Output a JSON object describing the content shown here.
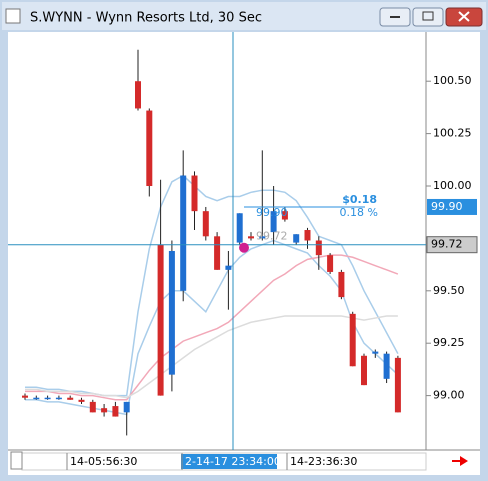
{
  "window": {
    "title": "S.WYNN - Wynn Resorts Ltd, 30 Sec"
  },
  "chart_data": {
    "type": "candlestick",
    "open": [
      99.0,
      98.99,
      98.99,
      98.99,
      98.99,
      98.98,
      98.97,
      98.94,
      98.95,
      98.92,
      100.5,
      100.36,
      99.72,
      99.1,
      99.5,
      100.05,
      99.88,
      99.76,
      99.6,
      99.73,
      99.76,
      99.75,
      99.78,
      99.88,
      99.73,
      99.79,
      99.74,
      99.67,
      99.59,
      99.39,
      99.19,
      99.2,
      99.08,
      99.18
    ],
    "high": [
      99.01,
      99.0,
      99.0,
      99.0,
      99.0,
      98.99,
      98.98,
      98.96,
      98.97,
      98.97,
      100.65,
      100.37,
      100.03,
      99.74,
      100.17,
      100.07,
      99.9,
      99.78,
      99.69,
      99.87,
      99.78,
      100.17,
      100.0,
      99.9,
      99.77,
      99.8,
      99.76,
      99.68,
      99.6,
      99.4,
      99.2,
      99.22,
      99.21,
      99.19
    ],
    "low": [
      98.98,
      98.98,
      98.98,
      98.98,
      98.98,
      98.96,
      98.92,
      98.9,
      98.9,
      98.81,
      100.36,
      99.95,
      99.0,
      99.02,
      99.45,
      99.79,
      99.74,
      99.6,
      99.41,
      99.72,
      99.74,
      99.74,
      99.72,
      99.83,
      99.72,
      99.7,
      99.6,
      99.58,
      99.46,
      99.14,
      99.05,
      99.18,
      99.06,
      98.92
    ],
    "close": [
      98.99,
      98.99,
      98.99,
      98.99,
      98.98,
      98.97,
      98.92,
      98.92,
      98.9,
      98.97,
      100.37,
      100.0,
      99.0,
      99.69,
      100.05,
      99.88,
      99.76,
      99.6,
      99.62,
      99.87,
      99.75,
      99.76,
      99.88,
      99.84,
      99.77,
      99.74,
      99.67,
      99.59,
      99.47,
      99.14,
      99.05,
      99.21,
      99.2,
      98.92
    ],
    "up_color": "#1f6fd1",
    "down_color": "#d42a2a",
    "series": [
      {
        "color": "#a9cdea",
        "values": [
          99.04,
          99.04,
          99.03,
          99.03,
          99.02,
          99.02,
          99.01,
          99.0,
          99.0,
          99.0,
          99.4,
          99.7,
          99.9,
          100.02,
          100.05,
          100.0,
          99.95,
          99.93,
          99.95,
          99.95,
          99.97,
          99.98,
          99.98,
          99.97,
          99.93,
          99.85,
          99.76,
          99.74,
          99.72,
          99.62,
          99.5,
          99.4,
          99.3,
          99.2
        ]
      },
      {
        "color": "#a9cdea",
        "values": [
          98.98,
          98.98,
          98.97,
          98.97,
          98.96,
          98.95,
          98.94,
          98.93,
          98.92,
          98.91,
          99.2,
          99.33,
          99.45,
          99.5,
          99.5,
          99.45,
          99.4,
          99.5,
          99.6,
          99.66,
          99.7,
          99.72,
          99.74,
          99.72,
          99.7,
          99.68,
          99.62,
          99.57,
          99.5,
          99.35,
          99.25,
          99.2,
          99.15,
          99.1
        ]
      },
      {
        "color": "#f2a8b8",
        "values": [
          99.02,
          99.02,
          99.02,
          99.01,
          99.01,
          99.0,
          99.0,
          98.99,
          98.98,
          98.98,
          99.05,
          99.12,
          99.18,
          99.22,
          99.26,
          99.28,
          99.3,
          99.32,
          99.35,
          99.4,
          99.45,
          99.5,
          99.55,
          99.58,
          99.62,
          99.65,
          99.66,
          99.67,
          99.67,
          99.66,
          99.64,
          99.62,
          99.6,
          99.58
        ]
      },
      {
        "color": "#dcdcdc",
        "values": [
          99.03,
          99.03,
          99.02,
          99.02,
          99.02,
          99.01,
          99.01,
          99.0,
          99.0,
          98.99,
          99.02,
          99.06,
          99.1,
          99.14,
          99.18,
          99.22,
          99.25,
          99.28,
          99.31,
          99.33,
          99.35,
          99.36,
          99.37,
          99.38,
          99.38,
          99.38,
          99.38,
          99.38,
          99.38,
          99.37,
          99.36,
          99.37,
          99.38,
          99.38
        ]
      }
    ],
    "ylim": [
      98.75,
      100.73
    ],
    "yticks": [
      {
        "value": 100.5,
        "label": "100.50"
      },
      {
        "value": 100.25,
        "label": "100.25"
      },
      {
        "value": 100.0,
        "label": "100.00"
      },
      {
        "value": 99.5,
        "label": "99.50"
      },
      {
        "value": 99.25,
        "label": "99.25"
      },
      {
        "value": 99.0,
        "label": "99.00"
      }
    ],
    "x_labels": [
      "14-05:56:30",
      "2-14-17 23:34:00",
      "14-23:36:30"
    ],
    "crosshair": {
      "value": 99.72,
      "label": "99.72"
    },
    "measure": {
      "value": 99.9,
      "label": "99.90",
      "change": "$0.18",
      "change_pct": "0.18 %",
      "start_label": "99.72"
    }
  }
}
